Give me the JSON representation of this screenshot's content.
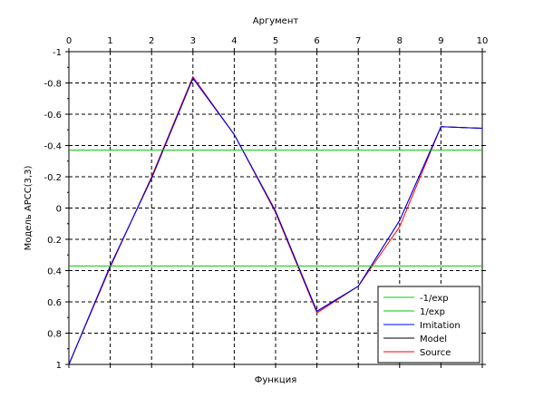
{
  "chart_data": {
    "type": "line",
    "orientation": "rotated-180",
    "title_top": "Аргумент",
    "xlabel": "Функция",
    "ylabel": "Модель АРСС(3,3)",
    "xlim": [
      0,
      10
    ],
    "ylim": [
      -1,
      1
    ],
    "x_ticks": [
      "0",
      "1",
      "2",
      "3",
      "4",
      "5",
      "6",
      "7",
      "8",
      "9",
      "10"
    ],
    "y_ticks": [
      "-1",
      "-0.8",
      "-0.6",
      "-0.4",
      "-0.2",
      "0",
      "0.2",
      "0.4",
      "0.6",
      "0.8",
      "1"
    ],
    "grid": true,
    "legend_position": "bottom-right",
    "x": [
      0,
      1,
      2,
      3,
      4,
      5,
      6,
      7,
      8,
      9,
      10
    ],
    "series": [
      {
        "name": "Source",
        "color": "#ff0000",
        "values": [
          1.0,
          0.38,
          -0.2,
          -0.84,
          -0.47,
          0.03,
          0.67,
          0.5,
          0.12,
          -0.52,
          -0.51
        ]
      },
      {
        "name": "Model",
        "color": "#000000",
        "values": [
          1.0,
          0.37,
          -0.19,
          -0.83,
          -0.47,
          0.02,
          0.66,
          0.5,
          0.08,
          -0.52,
          -0.51
        ]
      },
      {
        "name": "Imitation",
        "color": "#0000ff",
        "values": [
          1.0,
          0.37,
          -0.19,
          -0.83,
          -0.47,
          0.02,
          0.66,
          0.5,
          0.08,
          -0.52,
          -0.51
        ]
      },
      {
        "name": "1/exp",
        "color": "#00cc00",
        "constant": 0.37
      },
      {
        "name": "-1/exp",
        "color": "#00cc00",
        "constant": -0.37
      }
    ]
  }
}
